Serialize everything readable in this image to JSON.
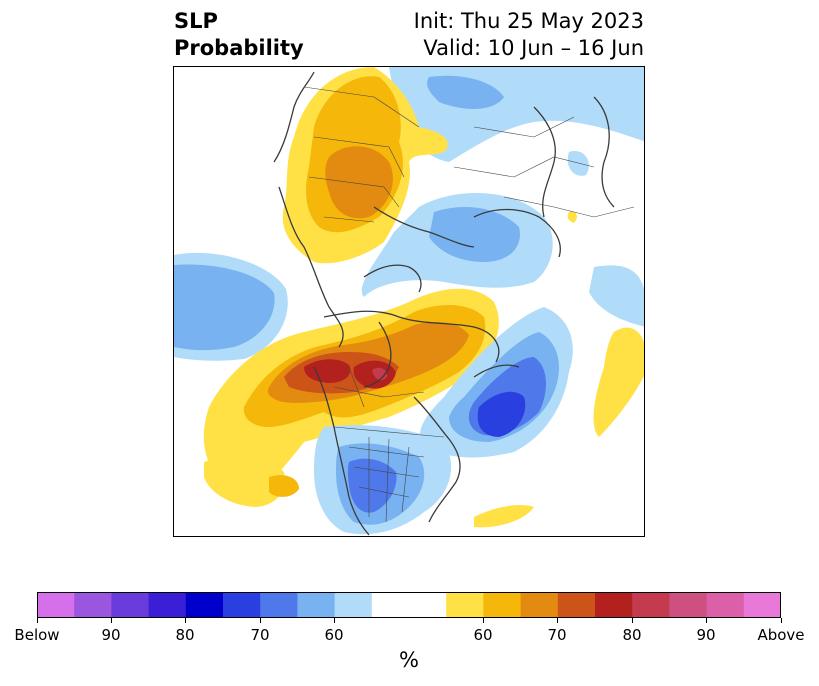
{
  "header": {
    "variable": "SLP",
    "product": "Probability",
    "init": "Init: Thu 25 May 2023",
    "valid": "Valid: 10 Jun – 16 Jun"
  },
  "colorbar": {
    "unit": "%",
    "colors": [
      "#d670ea",
      "#9b56e0",
      "#6b3cdc",
      "#3a1fd6",
      "#0000cc",
      "#2a3fe0",
      "#4f78ea",
      "#79b2f0",
      "#b0dcfa",
      "#ffffff",
      "#ffffff",
      "#ffe146",
      "#f4b70a",
      "#e38a10",
      "#cc5418",
      "#b3211f",
      "#c43a4e",
      "#cd5080",
      "#db60a8",
      "#e879d8"
    ],
    "tick_labels": [
      "Below",
      "90",
      "80",
      "70",
      "60",
      "60",
      "70",
      "80",
      "90",
      "Above"
    ]
  },
  "palette": {
    "below_light": "#b0dcfa",
    "below_mid": "#79b2f0",
    "below_strong": "#4f78ea",
    "below_deep": "#2a3fe0",
    "above_light": "#ffe146",
    "above_mid": "#f4b70a",
    "above_strong": "#e38a10",
    "above_deep": "#cc5418",
    "above_max": "#b3211f",
    "above_peak": "#c43a4e",
    "coast": "#3a3a3a"
  }
}
